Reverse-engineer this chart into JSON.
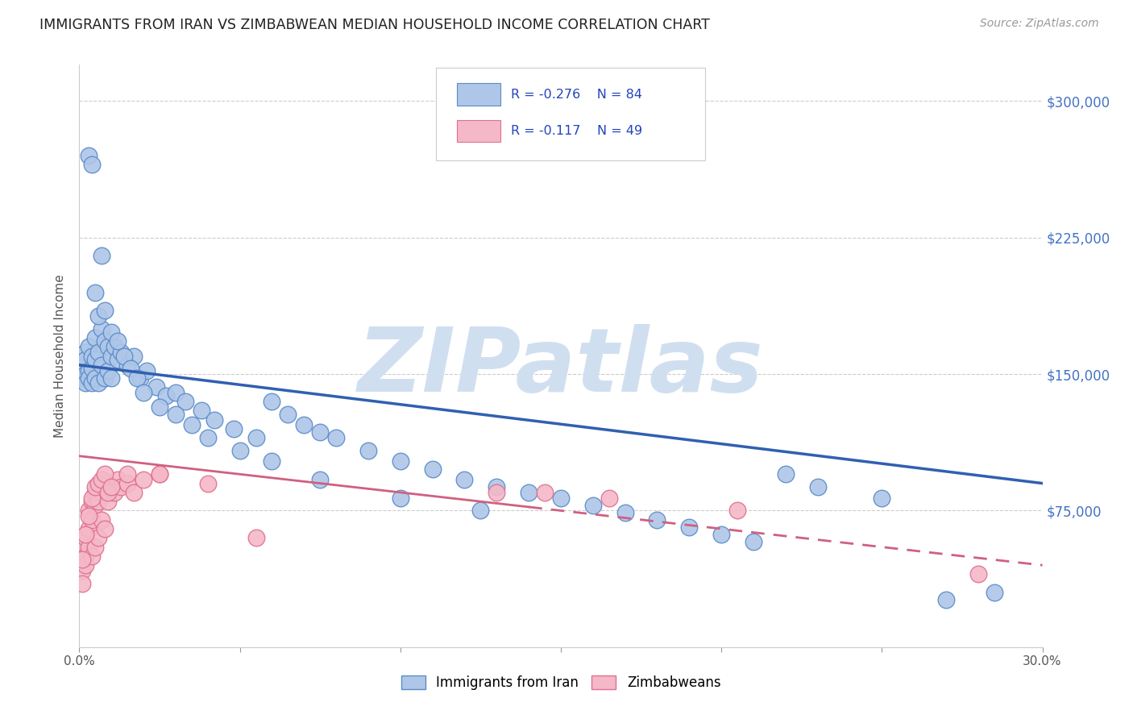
{
  "title": "IMMIGRANTS FROM IRAN VS ZIMBABWEAN MEDIAN HOUSEHOLD INCOME CORRELATION CHART",
  "source": "Source: ZipAtlas.com",
  "ylabel": "Median Household Income",
  "yticks": [
    0,
    75000,
    150000,
    225000,
    300000
  ],
  "ytick_labels": [
    "",
    "$75,000",
    "$150,000",
    "$225,000",
    "$300,000"
  ],
  "xlim": [
    0,
    0.3
  ],
  "ylim": [
    0,
    320000
  ],
  "blue_R": -0.276,
  "blue_N": 84,
  "pink_R": -0.117,
  "pink_N": 49,
  "blue_fill_color": "#aec6e8",
  "blue_edge_color": "#5b8cc8",
  "pink_fill_color": "#f4b8c8",
  "pink_edge_color": "#e07090",
  "blue_line_color": "#3060b0",
  "pink_line_color": "#d06080",
  "watermark": "ZIPatlas",
  "watermark_color": "#d0dff0",
  "legend1_label": "Immigrants from Iran",
  "legend2_label": "Zimbabweans",
  "background_color": "#ffffff",
  "grid_color": "#cccccc",
  "blue_x": [
    0.001,
    0.001,
    0.002,
    0.002,
    0.002,
    0.002,
    0.003,
    0.003,
    0.003,
    0.004,
    0.004,
    0.004,
    0.005,
    0.005,
    0.005,
    0.006,
    0.006,
    0.007,
    0.007,
    0.008,
    0.008,
    0.009,
    0.009,
    0.01,
    0.01,
    0.011,
    0.012,
    0.013,
    0.015,
    0.017,
    0.019,
    0.021,
    0.024,
    0.027,
    0.03,
    0.033,
    0.038,
    0.042,
    0.048,
    0.055,
    0.06,
    0.065,
    0.07,
    0.075,
    0.08,
    0.09,
    0.1,
    0.11,
    0.12,
    0.13,
    0.14,
    0.15,
    0.16,
    0.17,
    0.18,
    0.19,
    0.2,
    0.21,
    0.22,
    0.23,
    0.25,
    0.27,
    0.285,
    0.003,
    0.004,
    0.005,
    0.006,
    0.007,
    0.008,
    0.01,
    0.012,
    0.014,
    0.016,
    0.018,
    0.02,
    0.025,
    0.03,
    0.035,
    0.04,
    0.05,
    0.06,
    0.075,
    0.1,
    0.125
  ],
  "blue_y": [
    155000,
    148000,
    150000,
    162000,
    145000,
    158000,
    152000,
    165000,
    148000,
    153000,
    160000,
    145000,
    158000,
    170000,
    148000,
    162000,
    145000,
    175000,
    155000,
    168000,
    148000,
    165000,
    152000,
    160000,
    148000,
    165000,
    158000,
    162000,
    155000,
    160000,
    148000,
    152000,
    143000,
    138000,
    140000,
    135000,
    130000,
    125000,
    120000,
    115000,
    135000,
    128000,
    122000,
    118000,
    115000,
    108000,
    102000,
    98000,
    92000,
    88000,
    85000,
    82000,
    78000,
    74000,
    70000,
    66000,
    62000,
    58000,
    95000,
    88000,
    82000,
    26000,
    30000,
    270000,
    265000,
    195000,
    182000,
    215000,
    185000,
    173000,
    168000,
    160000,
    153000,
    148000,
    140000,
    132000,
    128000,
    122000,
    115000,
    108000,
    102000,
    92000,
    82000,
    75000
  ],
  "pink_x": [
    0.001,
    0.001,
    0.001,
    0.002,
    0.002,
    0.002,
    0.003,
    0.003,
    0.003,
    0.004,
    0.004,
    0.004,
    0.005,
    0.005,
    0.005,
    0.006,
    0.006,
    0.007,
    0.007,
    0.008,
    0.008,
    0.009,
    0.01,
    0.011,
    0.012,
    0.013,
    0.015,
    0.017,
    0.02,
    0.025,
    0.001,
    0.002,
    0.003,
    0.004,
    0.005,
    0.006,
    0.007,
    0.008,
    0.009,
    0.01,
    0.015,
    0.025,
    0.04,
    0.055,
    0.13,
    0.145,
    0.165,
    0.205,
    0.28
  ],
  "pink_y": [
    55000,
    42000,
    35000,
    50000,
    60000,
    45000,
    65000,
    75000,
    55000,
    70000,
    80000,
    50000,
    78000,
    85000,
    55000,
    80000,
    60000,
    85000,
    70000,
    90000,
    65000,
    80000,
    88000,
    85000,
    92000,
    88000,
    90000,
    85000,
    92000,
    95000,
    48000,
    62000,
    72000,
    82000,
    88000,
    90000,
    92000,
    95000,
    85000,
    88000,
    95000,
    95000,
    90000,
    60000,
    85000,
    85000,
    82000,
    75000,
    40000
  ]
}
